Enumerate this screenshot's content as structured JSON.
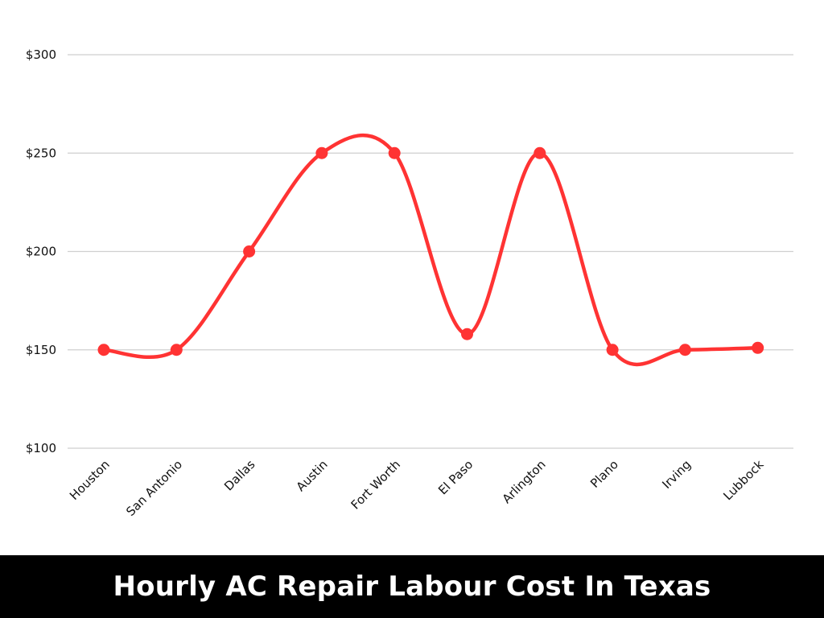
{
  "chart_data": {
    "type": "line",
    "title": "Hourly AC Repair Labour Cost In Texas",
    "xlabel": "",
    "ylabel": "",
    "categories": [
      "Houston",
      "San Antonio",
      "Dallas",
      "Austin",
      "Fort Worth",
      "El Paso",
      "Arlington",
      "Plano",
      "Irving",
      "Lubbock"
    ],
    "series": [
      {
        "values": [
          150,
          150,
          200,
          250,
          250,
          158,
          250,
          150,
          150,
          151
        ]
      }
    ],
    "ylim": [
      100,
      300
    ],
    "yticks": [
      100,
      150,
      200,
      250,
      300
    ],
    "ytick_labels": [
      "$100",
      "$150",
      "$200",
      "$250",
      "$300"
    ],
    "grid": true,
    "legend": "none",
    "smooth": true,
    "colors": {
      "line": "#ff3333",
      "marker": "#ff3333",
      "grid": "#cfcfcf",
      "title_bg": "#000000",
      "title_text": "#ffffff"
    }
  }
}
